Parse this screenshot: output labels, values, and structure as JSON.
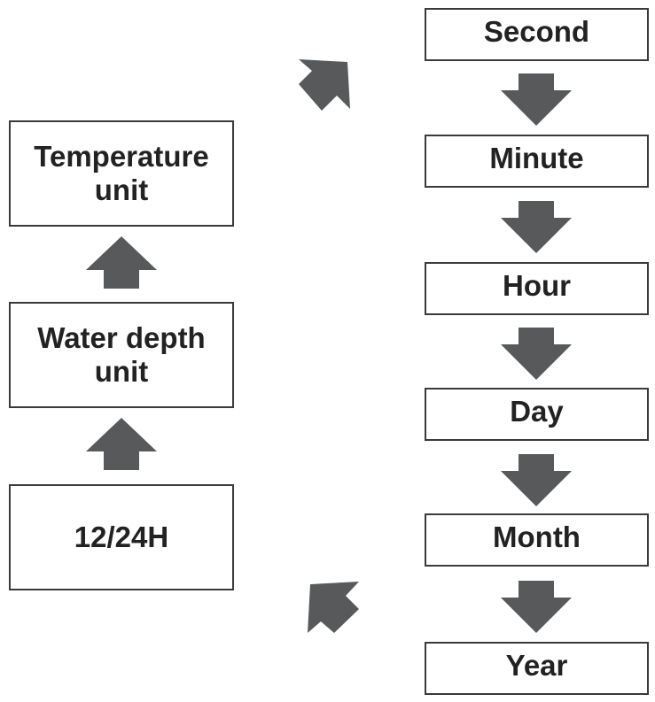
{
  "right_column": [
    "Second",
    "Minute",
    "Hour",
    "Day",
    "Month",
    "Year"
  ],
  "left_column": {
    "temperature": "Temperature\nunit",
    "water_depth": "Water depth\nunit",
    "hour_format": "12/24H"
  },
  "arrow_color": "#58595b"
}
